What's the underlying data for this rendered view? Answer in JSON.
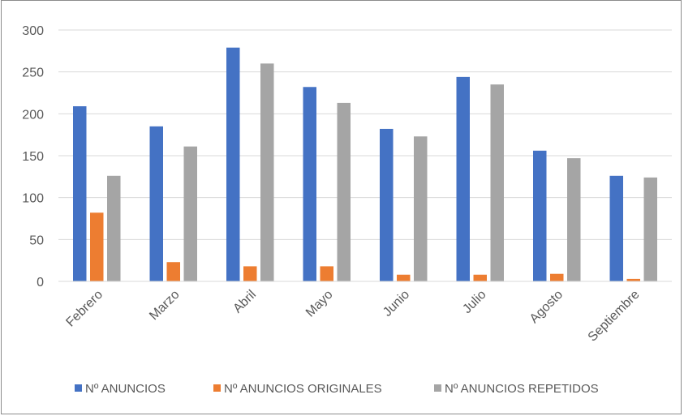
{
  "chart_data": {
    "type": "bar",
    "title": "",
    "xlabel": "",
    "ylabel": "",
    "ylim": [
      0,
      300
    ],
    "yticks": [
      0,
      50,
      100,
      150,
      200,
      250,
      300
    ],
    "grid": true,
    "legend_position": "bottom",
    "categories": [
      "Febrero",
      "Marzo",
      "Abril",
      "Mayo",
      "Junio",
      "Julio",
      "Agosto",
      "Septiembre"
    ],
    "series": [
      {
        "name": "Nº ANUNCIOS",
        "color": "#4472c4",
        "values": [
          209,
          185,
          279,
          232,
          182,
          244,
          156,
          126
        ]
      },
      {
        "name": "Nº ANUNCIOS ORIGINALES",
        "color": "#ed7d31",
        "values": [
          82,
          23,
          18,
          18,
          8,
          8,
          9,
          3
        ]
      },
      {
        "name": "Nº ANUNCIOS REPETIDOS",
        "color": "#a5a5a5",
        "values": [
          126,
          161,
          260,
          213,
          173,
          235,
          147,
          124
        ]
      }
    ]
  }
}
